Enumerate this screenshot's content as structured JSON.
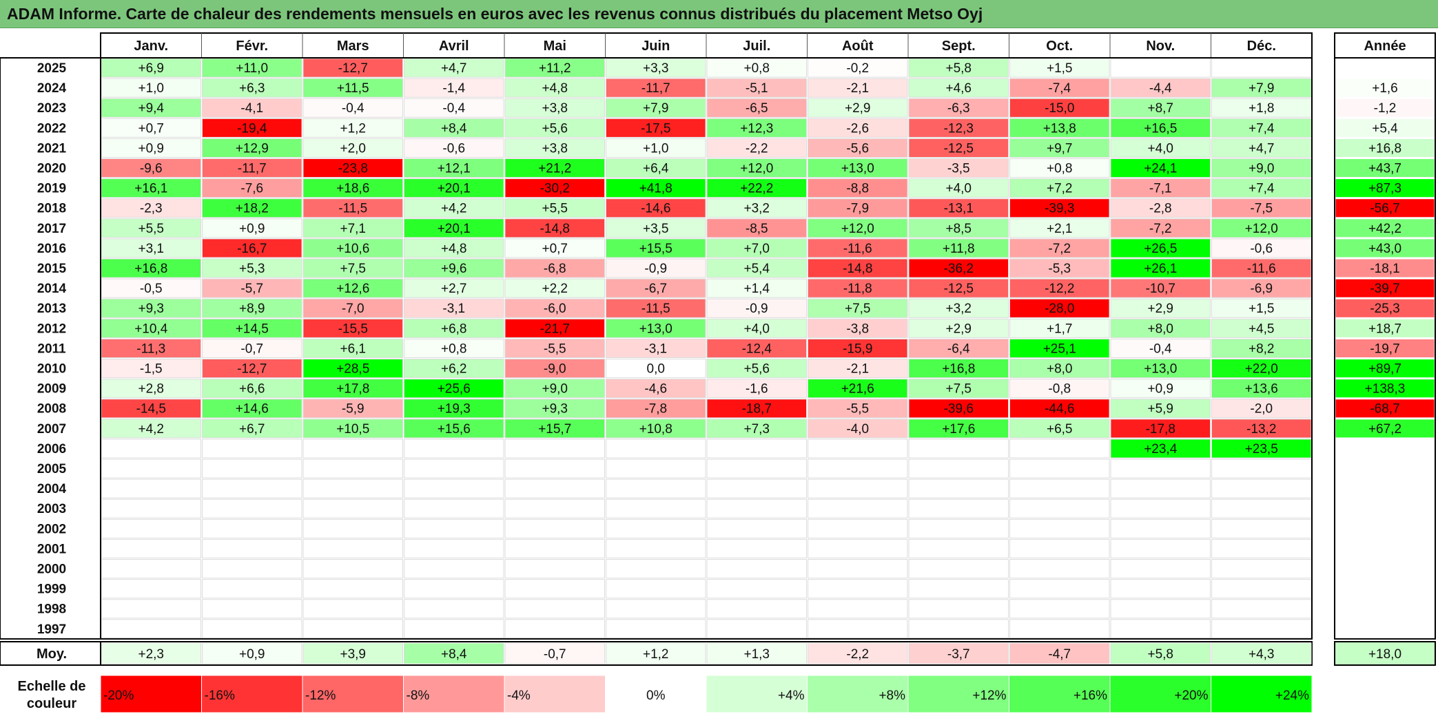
{
  "title": "ADAM Informe. Carte de chaleur des rendements mensuels en euros avec les revenus connus distribués du placement Metso Oyj",
  "colors": {
    "title_bg": "#7cc67c",
    "strong_negative": "#ff0000",
    "neutral": "#ffffff",
    "strong_positive": "#00ff00"
  },
  "chart_data": {
    "type": "heatmap",
    "months": [
      "Janv.",
      "Févr.",
      "Mars",
      "Avril",
      "Mai",
      "Juin",
      "Juil.",
      "Août",
      "Sept.",
      "Oct.",
      "Nov.",
      "Déc."
    ],
    "year_header": "Année",
    "average_label": "Moy.",
    "scale_label": "Echelle de couleur",
    "rows": [
      {
        "year": "2025",
        "values": [
          "+6,9",
          "+11,0",
          "-12,7",
          "+4,7",
          "+11,2",
          "+3,3",
          "+0,8",
          "-0,2",
          "+5,8",
          "+1,5",
          "",
          ""
        ],
        "annual": ""
      },
      {
        "year": "2024",
        "values": [
          "+1,0",
          "+6,3",
          "+11,5",
          "-1,4",
          "+4,8",
          "-11,7",
          "-5,1",
          "-2,1",
          "+4,6",
          "-7,4",
          "-4,4",
          "+7,9"
        ],
        "annual": "+1,6"
      },
      {
        "year": "2023",
        "values": [
          "+9,4",
          "-4,1",
          "-0,4",
          "-0,4",
          "+3,8",
          "+7,9",
          "-6,5",
          "+2,9",
          "-6,3",
          "-15,0",
          "+8,7",
          "+1,8"
        ],
        "annual": "-1,2"
      },
      {
        "year": "2022",
        "values": [
          "+0,7",
          "-19,4",
          "+1,2",
          "+8,4",
          "+5,6",
          "-17,5",
          "+12,3",
          "-2,6",
          "-12,3",
          "+13,8",
          "+16,5",
          "+7,4"
        ],
        "annual": "+5,4"
      },
      {
        "year": "2021",
        "values": [
          "+0,9",
          "+12,9",
          "+2,0",
          "-0,6",
          "+3,8",
          "+1,0",
          "-2,2",
          "-5,6",
          "-12,5",
          "+9,7",
          "+4,0",
          "+4,7"
        ],
        "annual": "+16,8"
      },
      {
        "year": "2020",
        "values": [
          "-9,6",
          "-11,7",
          "-23,8",
          "+12,1",
          "+21,2",
          "+6,4",
          "+12,0",
          "+13,0",
          "-3,5",
          "+0,8",
          "+24,1",
          "+9,0"
        ],
        "annual": "+43,7"
      },
      {
        "year": "2019",
        "values": [
          "+16,1",
          "-7,6",
          "+18,6",
          "+20,1",
          "-30,2",
          "+41,8",
          "+22,2",
          "-8,8",
          "+4,0",
          "+7,2",
          "-7,1",
          "+7,4"
        ],
        "annual": "+87,3"
      },
      {
        "year": "2018",
        "values": [
          "-2,3",
          "+18,2",
          "-11,5",
          "+4,2",
          "+5,5",
          "-14,6",
          "+3,2",
          "-7,9",
          "-13,1",
          "-39,3",
          "-2,8",
          "-7,5"
        ],
        "annual": "-56,7"
      },
      {
        "year": "2017",
        "values": [
          "+5,5",
          "+0,9",
          "+7,1",
          "+20,1",
          "-14,8",
          "+3,5",
          "-8,5",
          "+12,0",
          "+8,5",
          "+2,1",
          "-7,2",
          "+12,0"
        ],
        "annual": "+42,2"
      },
      {
        "year": "2016",
        "values": [
          "+3,1",
          "-16,7",
          "+10,6",
          "+4,8",
          "+0,7",
          "+15,5",
          "+7,0",
          "-11,6",
          "+11,8",
          "-7,2",
          "+26,5",
          "-0,6"
        ],
        "annual": "+43,0"
      },
      {
        "year": "2015",
        "values": [
          "+16,8",
          "+5,3",
          "+7,5",
          "+9,6",
          "-6,8",
          "-0,9",
          "+5,4",
          "-14,8",
          "-36,2",
          "-5,3",
          "+26,1",
          "-11,6"
        ],
        "annual": "-18,1"
      },
      {
        "year": "2014",
        "values": [
          "-0,5",
          "-5,7",
          "+12,6",
          "+2,7",
          "+2,2",
          "-6,7",
          "+1,4",
          "-11,8",
          "-12,5",
          "-12,2",
          "-10,7",
          "-6,9"
        ],
        "annual": "-39,7"
      },
      {
        "year": "2013",
        "values": [
          "+9,3",
          "+8,9",
          "-7,0",
          "-3,1",
          "-6,0",
          "-11,5",
          "-0,9",
          "+7,5",
          "+3,2",
          "-28,0",
          "+2,9",
          "+1,5"
        ],
        "annual": "-25,3"
      },
      {
        "year": "2012",
        "values": [
          "+10,4",
          "+14,5",
          "-15,5",
          "+6,8",
          "-21,7",
          "+13,0",
          "+4,0",
          "-3,8",
          "+2,9",
          "+1,7",
          "+8,0",
          "+4,5"
        ],
        "annual": "+18,7"
      },
      {
        "year": "2011",
        "values": [
          "-11,3",
          "-0,7",
          "+6,1",
          "+0,8",
          "-5,5",
          "-3,1",
          "-12,4",
          "-15,9",
          "-6,4",
          "+25,1",
          "-0,4",
          "+8,2"
        ],
        "annual": "-19,7"
      },
      {
        "year": "2010",
        "values": [
          "-1,5",
          "-12,7",
          "+28,5",
          "+6,2",
          "-9,0",
          "0,0",
          "+5,6",
          "-2,1",
          "+16,8",
          "+8,0",
          "+13,0",
          "+22,0"
        ],
        "annual": "+89,7"
      },
      {
        "year": "2009",
        "values": [
          "+2,8",
          "+6,6",
          "+17,8",
          "+25,6",
          "+9,0",
          "-4,6",
          "-1,6",
          "+21,6",
          "+7,5",
          "-0,8",
          "+0,9",
          "+13,6"
        ],
        "annual": "+138,3"
      },
      {
        "year": "2008",
        "values": [
          "-14,5",
          "+14,6",
          "-5,9",
          "+19,3",
          "+9,3",
          "-7,8",
          "-18,7",
          "-5,5",
          "-39,6",
          "-44,6",
          "+5,9",
          "-2,0"
        ],
        "annual": "-68,7"
      },
      {
        "year": "2007",
        "values": [
          "+4,2",
          "+6,7",
          "+10,5",
          "+15,6",
          "+15,7",
          "+10,8",
          "+7,3",
          "-4,0",
          "+17,6",
          "+6,5",
          "-17,8",
          "-13,2"
        ],
        "annual": "+67,2"
      },
      {
        "year": "2006",
        "values": [
          "",
          "",
          "",
          "",
          "",
          "",
          "",
          "",
          "",
          "",
          "+23,4",
          "+23,5"
        ],
        "annual": ""
      },
      {
        "year": "2005",
        "values": [
          "",
          "",
          "",
          "",
          "",
          "",
          "",
          "",
          "",
          "",
          "",
          ""
        ],
        "annual": ""
      },
      {
        "year": "2004",
        "values": [
          "",
          "",
          "",
          "",
          "",
          "",
          "",
          "",
          "",
          "",
          "",
          ""
        ],
        "annual": ""
      },
      {
        "year": "2003",
        "values": [
          "",
          "",
          "",
          "",
          "",
          "",
          "",
          "",
          "",
          "",
          "",
          ""
        ],
        "annual": ""
      },
      {
        "year": "2002",
        "values": [
          "",
          "",
          "",
          "",
          "",
          "",
          "",
          "",
          "",
          "",
          "",
          ""
        ],
        "annual": ""
      },
      {
        "year": "2001",
        "values": [
          "",
          "",
          "",
          "",
          "",
          "",
          "",
          "",
          "",
          "",
          "",
          ""
        ],
        "annual": ""
      },
      {
        "year": "2000",
        "values": [
          "",
          "",
          "",
          "",
          "",
          "",
          "",
          "",
          "",
          "",
          "",
          ""
        ],
        "annual": ""
      },
      {
        "year": "1999",
        "values": [
          "",
          "",
          "",
          "",
          "",
          "",
          "",
          "",
          "",
          "",
          "",
          ""
        ],
        "annual": ""
      },
      {
        "year": "1998",
        "values": [
          "",
          "",
          "",
          "",
          "",
          "",
          "",
          "",
          "",
          "",
          "",
          ""
        ],
        "annual": ""
      },
      {
        "year": "1997",
        "values": [
          "",
          "",
          "",
          "",
          "",
          "",
          "",
          "",
          "",
          "",
          "",
          ""
        ],
        "annual": ""
      }
    ],
    "averages": [
      "+2,3",
      "+0,9",
      "+3,9",
      "+8,4",
      "-0,7",
      "+1,2",
      "+1,3",
      "-2,2",
      "-3,7",
      "-4,7",
      "+5,8",
      "+4,3"
    ],
    "average_annual": "+18,0",
    "scale": [
      "-20%",
      "-16%",
      "-12%",
      "-8%",
      "-4%",
      "0%",
      "+4%",
      "+8%",
      "+12%",
      "+16%",
      "+20%",
      "+24%"
    ],
    "scale_values": [
      -20,
      -16,
      -12,
      -8,
      -4,
      0,
      4,
      8,
      12,
      16,
      20,
      24
    ]
  }
}
